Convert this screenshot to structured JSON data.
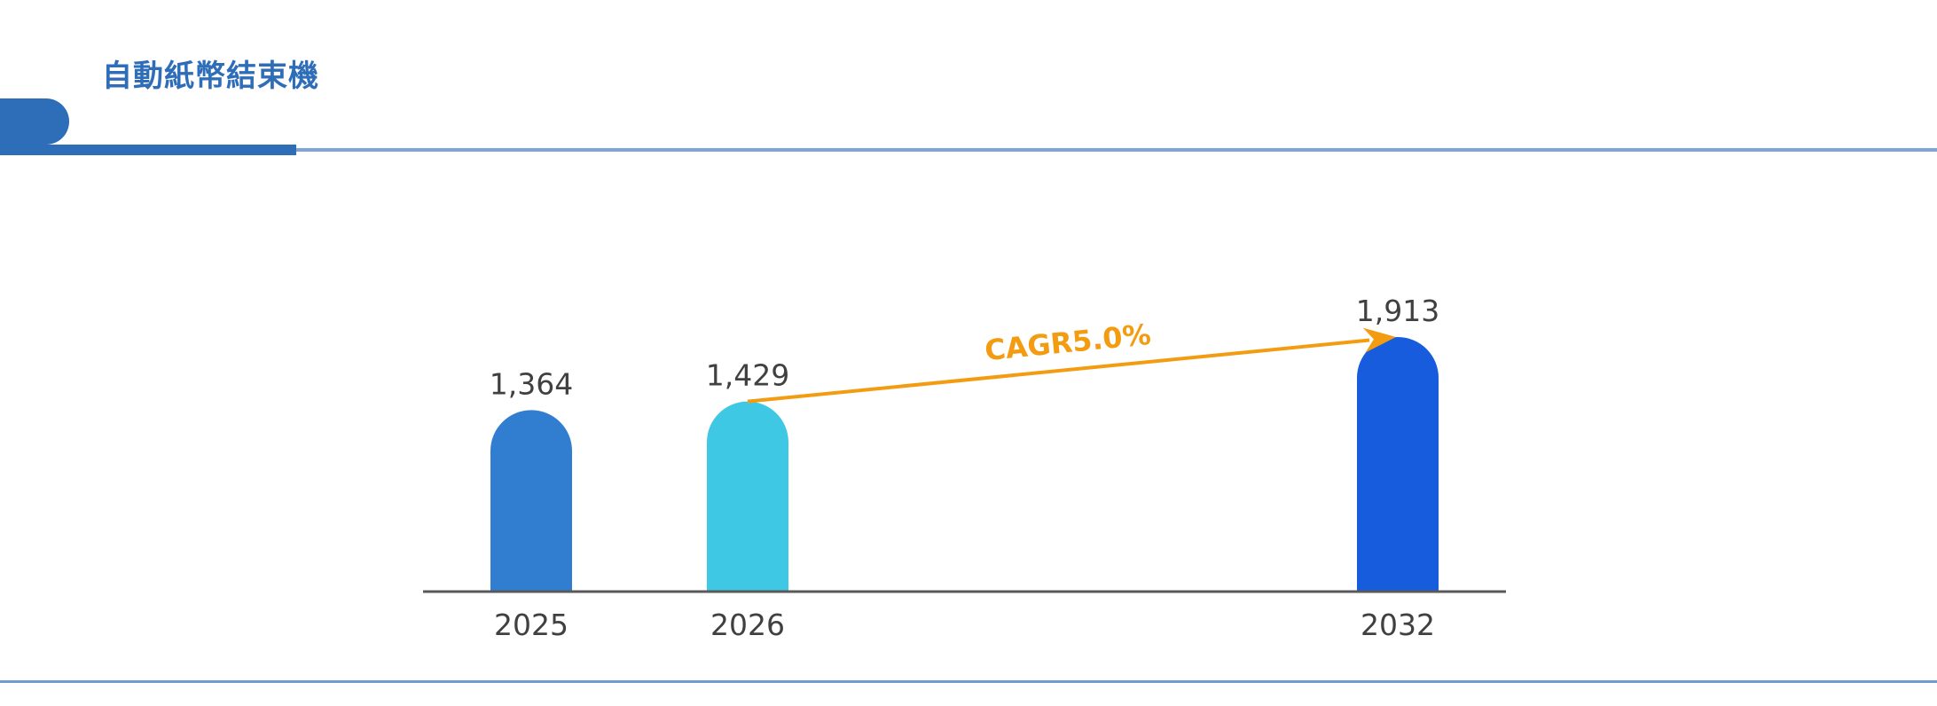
{
  "header": {
    "title": "自動紙幣結束機",
    "accent_color": "#2E6DB8"
  },
  "chart_data": {
    "type": "bar",
    "title": "自動紙幣結束機",
    "categories": [
      "2025",
      "2026",
      "2032"
    ],
    "values": [
      1364,
      1429,
      1913
    ],
    "value_labels": [
      "1,364",
      "1,429",
      "1,913"
    ],
    "colors": [
      "#317ED1",
      "#3FC8E4",
      "#175CDD"
    ],
    "xlabel": "",
    "ylabel": "",
    "ylim": [
      0,
      2000
    ],
    "grid": false,
    "legend": "none",
    "annotations": [
      {
        "text": "CAGR5.0%",
        "from": "2026",
        "to": "2032",
        "color": "#F39C12",
        "type": "arrow"
      }
    ]
  }
}
